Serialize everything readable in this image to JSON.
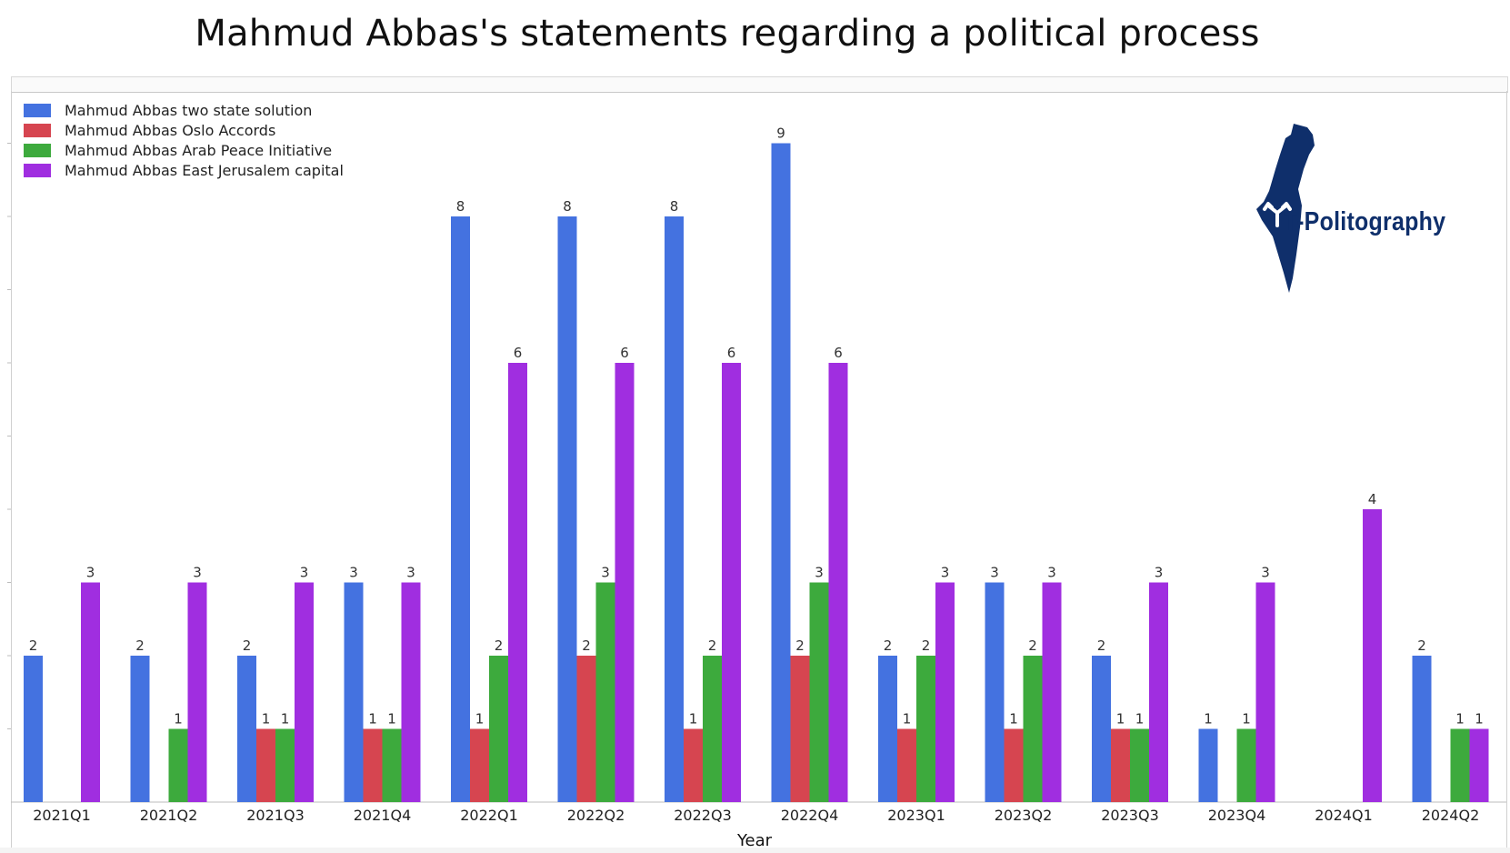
{
  "title": "Mahmud Abbas's statements regarding a political process",
  "brand": {
    "name": "T-Politography",
    "color": "#0f2f6b"
  },
  "chart_data": {
    "type": "bar",
    "categories": [
      "2021Q1",
      "2021Q2",
      "2021Q3",
      "2021Q4",
      "2022Q1",
      "2022Q2",
      "2022Q3",
      "2022Q4",
      "2023Q1",
      "2023Q2",
      "2023Q3",
      "2023Q4",
      "2024Q1",
      "2024Q2"
    ],
    "series": [
      {
        "name": "Mahmud Abbas two state solution",
        "color": "#4472e0",
        "values": [
          2,
          2,
          2,
          3,
          8,
          8,
          8,
          9,
          2,
          3,
          2,
          1,
          0,
          2
        ]
      },
      {
        "name": "Mahmud Abbas Oslo Accords",
        "color": "#d64550",
        "values": [
          0,
          0,
          1,
          1,
          1,
          2,
          1,
          2,
          1,
          1,
          1,
          0,
          0,
          0
        ]
      },
      {
        "name": "Mahmud Abbas Arab Peace Initiative",
        "color": "#3daa3d",
        "values": [
          0,
          1,
          1,
          1,
          2,
          3,
          2,
          3,
          2,
          2,
          1,
          1,
          0,
          1
        ]
      },
      {
        "name": "Mahmud Abbas East Jerusalem capital",
        "color": "#a02ee0",
        "values": [
          3,
          3,
          3,
          3,
          6,
          6,
          6,
          6,
          3,
          3,
          3,
          3,
          4,
          1
        ]
      }
    ],
    "xlabel": "Year",
    "ylabel": "",
    "ylim": [
      0,
      10
    ],
    "legend_position": "top-left",
    "grid": false
  }
}
